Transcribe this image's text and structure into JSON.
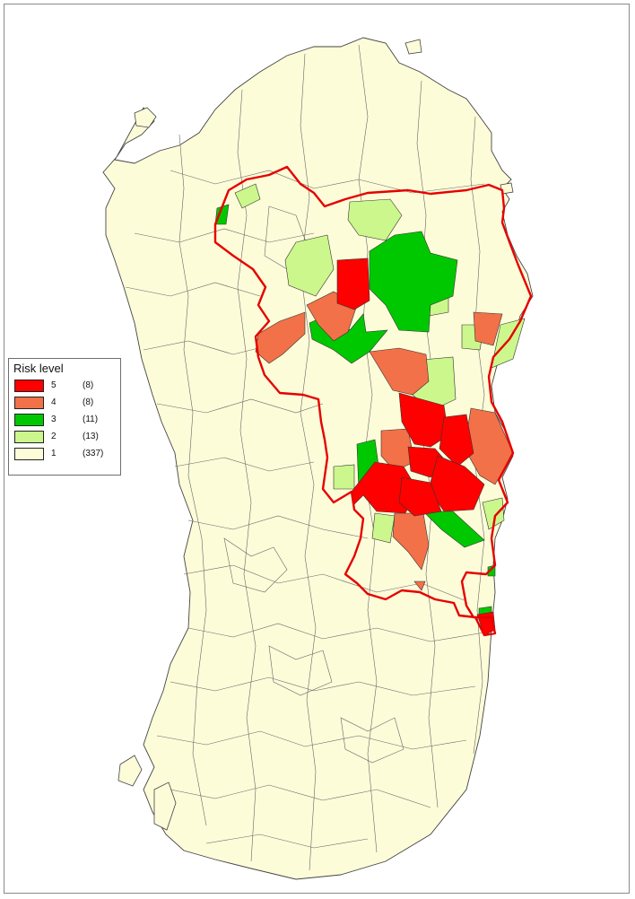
{
  "map": {
    "land_color": "#fdfcd9",
    "border_color": "#444444",
    "zone_outline_color": "#e60000"
  },
  "legend": {
    "title": "Risk level",
    "items": [
      {
        "level": "5",
        "count": "(8)",
        "color": "#ff0000"
      },
      {
        "level": "4",
        "count": "(8)",
        "color": "#f27148"
      },
      {
        "level": "3",
        "count": "(11)",
        "color": "#00c800"
      },
      {
        "level": "2",
        "count": "(13)",
        "color": "#ccf78c"
      },
      {
        "level": "1",
        "count": "(337)",
        "color": "#fdfcd9"
      }
    ]
  }
}
